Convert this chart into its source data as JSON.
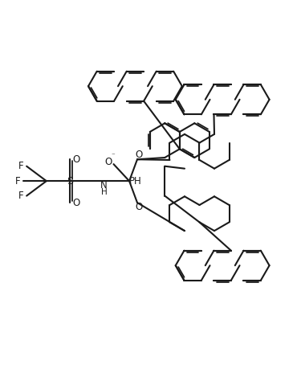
{
  "background": "#ffffff",
  "line_color": "#1a1a1a",
  "line_width": 1.5,
  "figsize": [
    3.7,
    4.54
  ],
  "dpi": 100,
  "xlim": [
    0,
    10
  ],
  "ylim": [
    0,
    12
  ]
}
